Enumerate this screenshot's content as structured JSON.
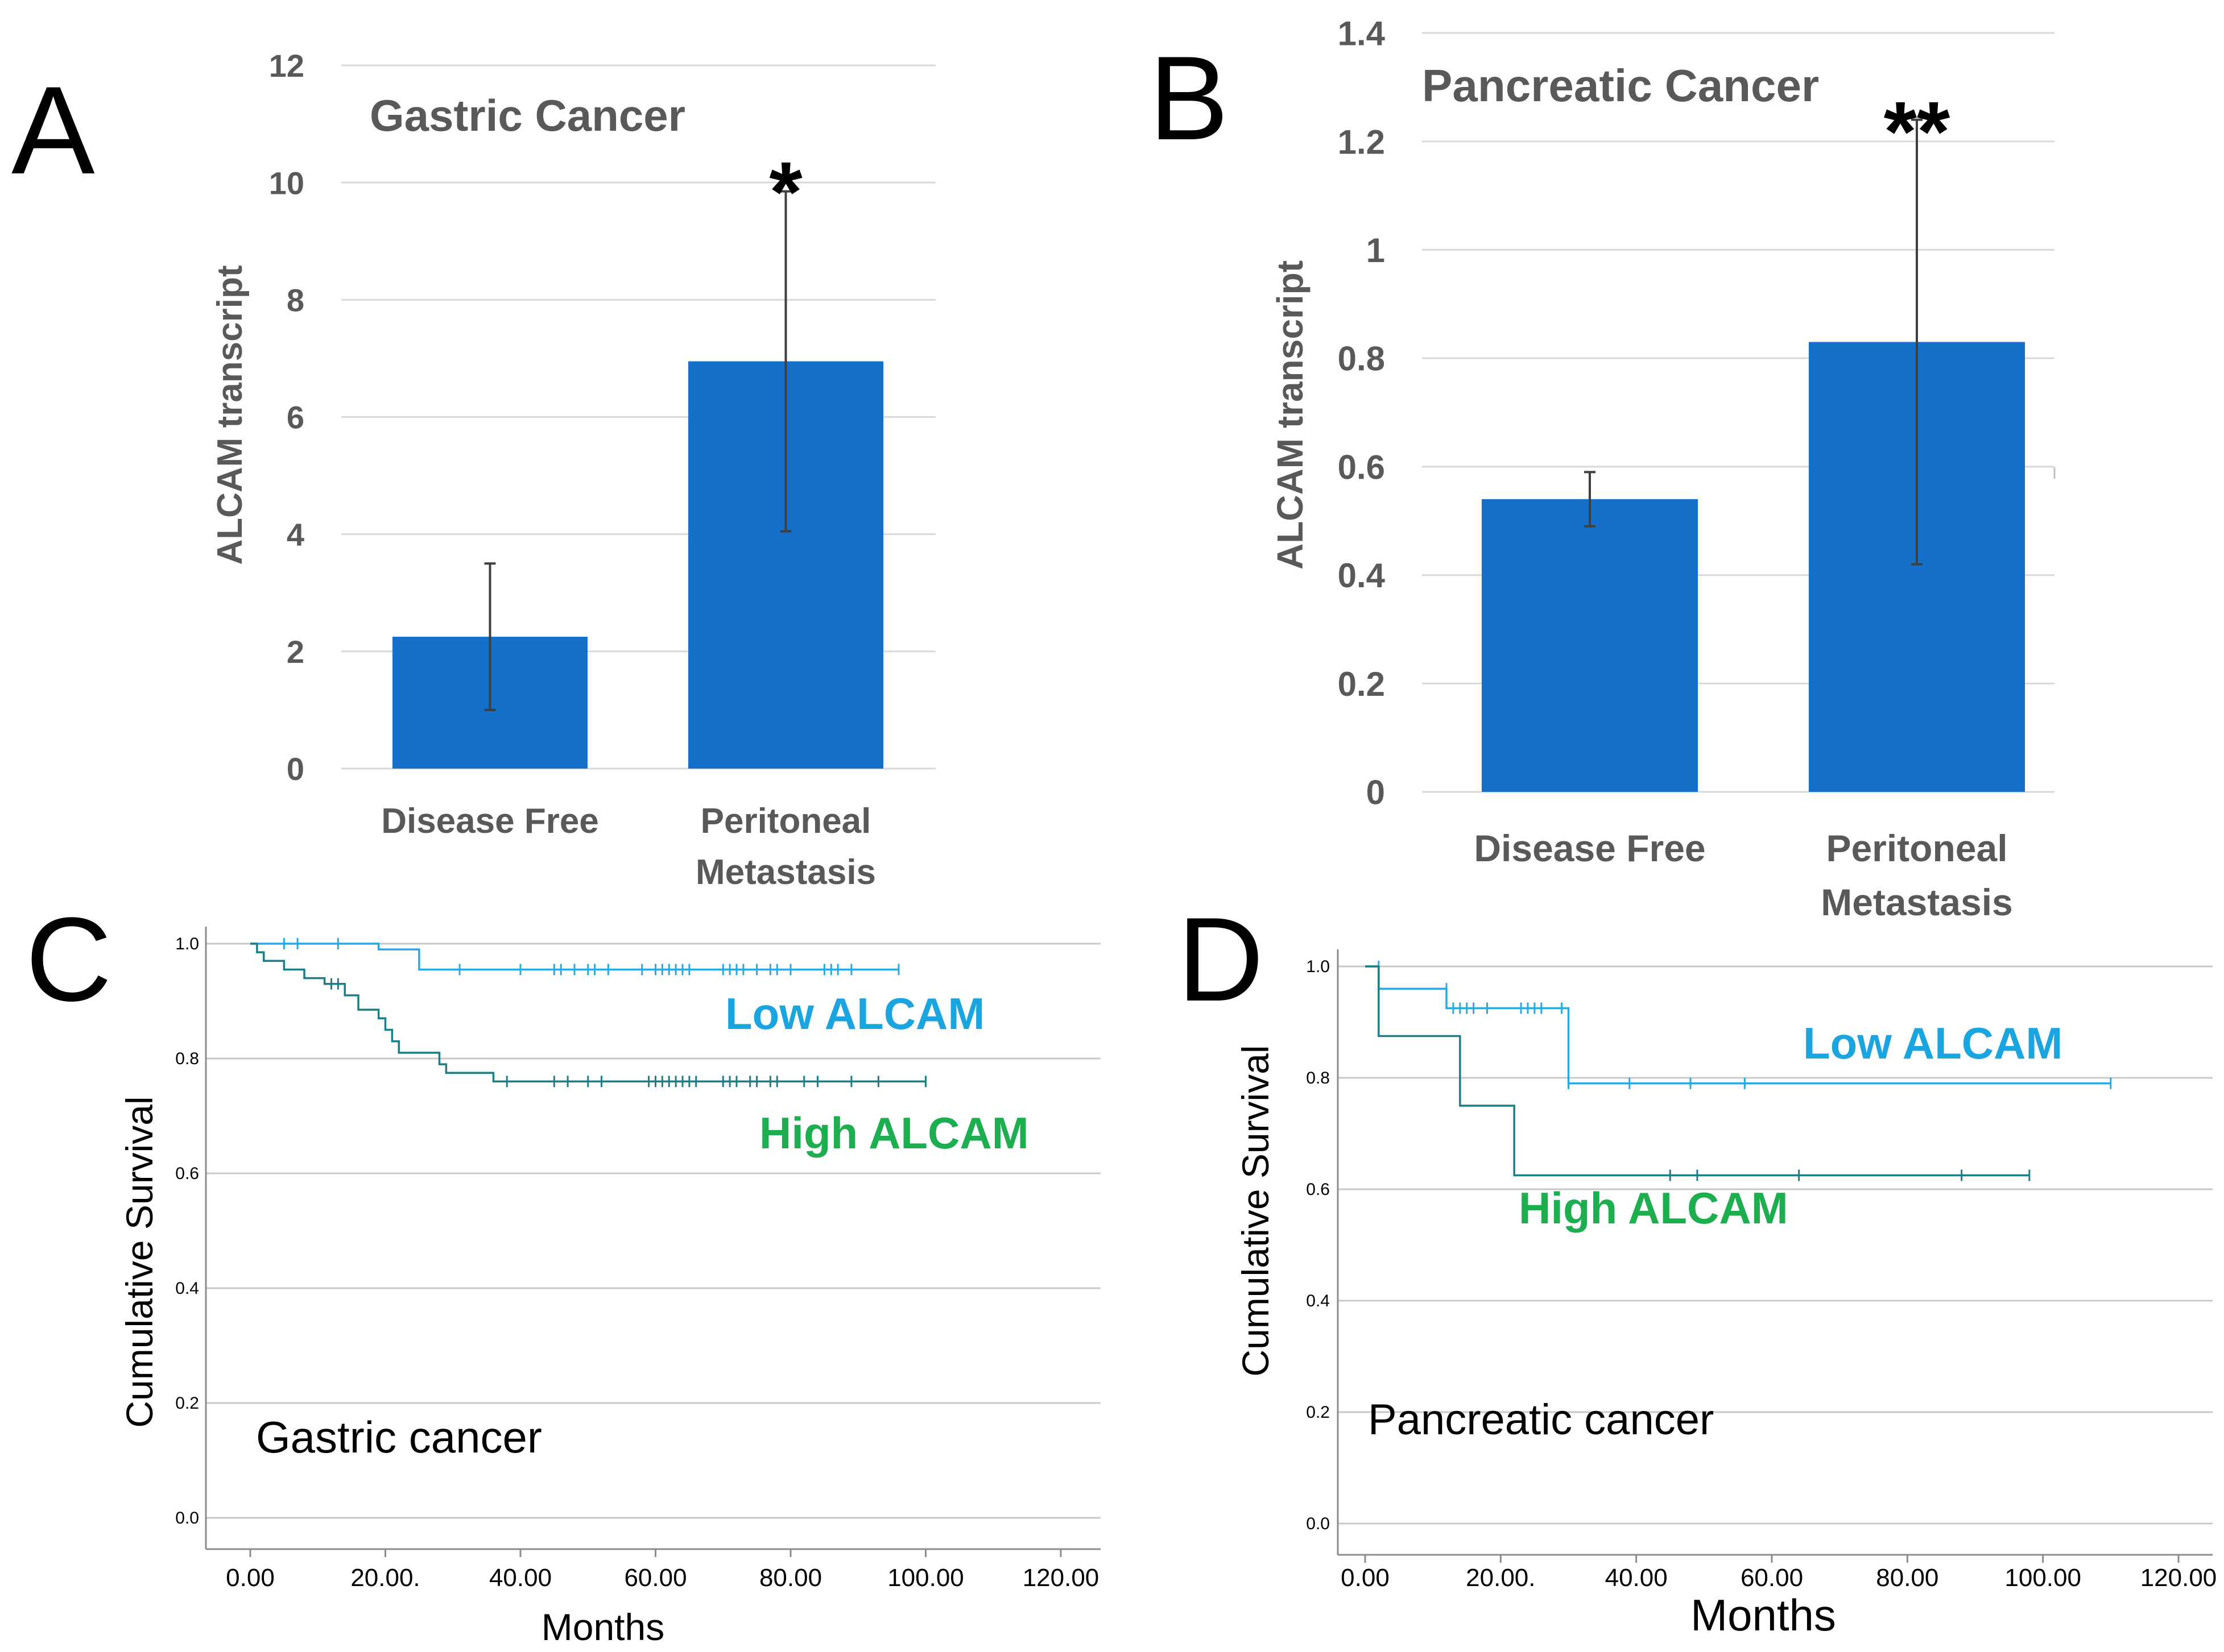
{
  "panels": [
    {
      "id": "A",
      "letter": "A"
    },
    {
      "id": "B",
      "letter": "B"
    },
    {
      "id": "C",
      "letter": "C"
    },
    {
      "id": "D",
      "letter": "D"
    }
  ],
  "chart_data": [
    {
      "panel": "A",
      "type": "bar",
      "title": "Gastric Cancer",
      "ylabel": "ALCAM transcript",
      "xlabel": "",
      "ylim": [
        0,
        12
      ],
      "yticks": [
        0,
        2,
        4,
        6,
        8,
        10,
        12
      ],
      "ytick_labels": [
        "0",
        "2",
        "4",
        "6",
        "8",
        "10",
        "12"
      ],
      "categories": [
        [
          "Disease Free"
        ],
        [
          "Peritoneal",
          "Metastasis"
        ]
      ],
      "values": [
        2.25,
        6.95
      ],
      "error_low": [
        1.0,
        4.05
      ],
      "error_high": [
        3.5,
        9.85
      ],
      "significance": [
        "",
        "*"
      ],
      "bar_color": "#1470C8"
    },
    {
      "panel": "B",
      "type": "bar",
      "title": "Pancreatic Cancer",
      "ylabel": "ALCAM transcript",
      "xlabel": "",
      "ylim": [
        0,
        1.4
      ],
      "yticks": [
        0,
        0.2,
        0.4,
        0.6,
        0.8,
        1,
        1.2,
        1.4
      ],
      "ytick_labels": [
        "0",
        "0.2",
        "0.4",
        "0.6",
        "0.8",
        "1",
        "1.2",
        "1.4"
      ],
      "categories": [
        [
          "Disease Free"
        ],
        [
          "Peritoneal",
          "Metastasis"
        ]
      ],
      "values": [
        0.54,
        0.83
      ],
      "error_low": [
        0.49,
        0.42
      ],
      "error_high": [
        0.59,
        1.24
      ],
      "significance": [
        "",
        "**"
      ],
      "bar_color": "#1470C8"
    },
    {
      "panel": "C",
      "type": "line",
      "subtype": "kaplan-meier",
      "title": "Gastric cancer",
      "xlabel": "Months",
      "ylabel": "Cumulative Survival",
      "xlim": [
        0,
        120
      ],
      "ylim": [
        0,
        1
      ],
      "xticks": [
        0,
        20,
        40,
        60,
        80,
        100,
        120
      ],
      "xtick_labels": [
        "0.00",
        "20.00.",
        "40.00",
        "60.00",
        "80.00",
        "100.00",
        "120.00"
      ],
      "yticks": [
        0,
        0.2,
        0.4,
        0.6,
        0.8,
        1.0
      ],
      "ytick_labels": [
        "0.0",
        "0.2",
        "0.4",
        "0.6",
        "0.8",
        "1.0"
      ],
      "series": [
        {
          "name": "Low ALCAM",
          "color": "#29A9E0",
          "steps": [
            [
              0,
              1.0
            ],
            [
              19,
              0.99
            ],
            [
              25,
              0.955
            ],
            [
              96,
              0.955
            ]
          ],
          "censored": [
            [
              5,
              1.0
            ],
            [
              7,
              1.0
            ],
            [
              13,
              1.0
            ],
            [
              31,
              0.955
            ],
            [
              40,
              0.955
            ],
            [
              45,
              0.955
            ],
            [
              46,
              0.955
            ],
            [
              48,
              0.955
            ],
            [
              50,
              0.955
            ],
            [
              51,
              0.955
            ],
            [
              53,
              0.955
            ],
            [
              58,
              0.955
            ],
            [
              60,
              0.955
            ],
            [
              61,
              0.955
            ],
            [
              62,
              0.955
            ],
            [
              63,
              0.955
            ],
            [
              64,
              0.955
            ],
            [
              65,
              0.955
            ],
            [
              70,
              0.955
            ],
            [
              71,
              0.955
            ],
            [
              72,
              0.955
            ],
            [
              73,
              0.955
            ],
            [
              75,
              0.955
            ],
            [
              77,
              0.955
            ],
            [
              78,
              0.955
            ],
            [
              80,
              0.955
            ],
            [
              85,
              0.955
            ],
            [
              86,
              0.955
            ],
            [
              87,
              0.955
            ],
            [
              89,
              0.955
            ],
            [
              96,
              0.955
            ]
          ]
        },
        {
          "name": "High ALCAM",
          "color": "#1A7F86",
          "steps": [
            [
              0,
              1.0
            ],
            [
              1,
              0.985
            ],
            [
              2,
              0.97
            ],
            [
              5,
              0.955
            ],
            [
              8,
              0.94
            ],
            [
              11,
              0.93
            ],
            [
              14,
              0.91
            ],
            [
              16,
              0.885
            ],
            [
              19,
              0.87
            ],
            [
              20,
              0.85
            ],
            [
              21,
              0.83
            ],
            [
              22,
              0.81
            ],
            [
              28,
              0.79
            ],
            [
              29,
              0.775
            ],
            [
              36,
              0.76
            ],
            [
              100,
              0.76
            ]
          ],
          "censored": [
            [
              12,
              0.93
            ],
            [
              13,
              0.93
            ],
            [
              38,
              0.76
            ],
            [
              45,
              0.76
            ],
            [
              47,
              0.76
            ],
            [
              50,
              0.76
            ],
            [
              52,
              0.76
            ],
            [
              59,
              0.76
            ],
            [
              60,
              0.76
            ],
            [
              61,
              0.76
            ],
            [
              62,
              0.76
            ],
            [
              63,
              0.76
            ],
            [
              64,
              0.76
            ],
            [
              65,
              0.76
            ],
            [
              66,
              0.76
            ],
            [
              70,
              0.76
            ],
            [
              71,
              0.76
            ],
            [
              72,
              0.76
            ],
            [
              74,
              0.76
            ],
            [
              75,
              0.76
            ],
            [
              77,
              0.76
            ],
            [
              78,
              0.76
            ],
            [
              82,
              0.76
            ],
            [
              84,
              0.76
            ],
            [
              89,
              0.76
            ],
            [
              93,
              0.76
            ],
            [
              100,
              0.76
            ]
          ]
        }
      ],
      "labels": [
        {
          "text": "Low ALCAM",
          "color": "#1AA4E0"
        },
        {
          "text": "High ALCAM",
          "color": "#1DAE4F"
        }
      ]
    },
    {
      "panel": "D",
      "type": "line",
      "subtype": "kaplan-meier",
      "title": "Pancreatic cancer",
      "xlabel": "Months",
      "ylabel": "Cumulative Survival",
      "xlim": [
        0,
        120
      ],
      "ylim": [
        0,
        1
      ],
      "xticks": [
        0,
        20,
        40,
        60,
        80,
        100,
        120
      ],
      "xtick_labels": [
        "0.00",
        "20.00.",
        "40.00",
        "60.00",
        "80.00",
        "100.00",
        "120.00"
      ],
      "yticks": [
        0,
        0.2,
        0.4,
        0.6,
        0.8,
        1.0
      ],
      "ytick_labels": [
        "0.0",
        "0.2",
        "0.4",
        "0.6",
        "0.8",
        "1.0"
      ],
      "series": [
        {
          "name": "Low ALCAM",
          "color": "#29A9E0",
          "steps": [
            [
              0,
              1.0
            ],
            [
              2,
              0.96
            ],
            [
              12,
              0.925
            ],
            [
              30,
              0.79
            ],
            [
              110,
              0.79
            ]
          ],
          "censored": [
            [
              2,
              1.0
            ],
            [
              12,
              0.96
            ],
            [
              13,
              0.925
            ],
            [
              14,
              0.925
            ],
            [
              15,
              0.925
            ],
            [
              16,
              0.925
            ],
            [
              18,
              0.925
            ],
            [
              23,
              0.925
            ],
            [
              24,
              0.925
            ],
            [
              25,
              0.925
            ],
            [
              26,
              0.925
            ],
            [
              29,
              0.925
            ],
            [
              30,
              0.79
            ],
            [
              39,
              0.79
            ],
            [
              48,
              0.79
            ],
            [
              56,
              0.79
            ],
            [
              110,
              0.79
            ]
          ]
        },
        {
          "name": "High ALCAM",
          "color": "#1A7F86",
          "steps": [
            [
              0,
              1.0
            ],
            [
              2,
              0.875
            ],
            [
              14,
              0.75
            ],
            [
              22,
              0.625
            ],
            [
              98,
              0.625
            ]
          ],
          "censored": [
            [
              45,
              0.625
            ],
            [
              49,
              0.625
            ],
            [
              64,
              0.625
            ],
            [
              88,
              0.625
            ],
            [
              98,
              0.625
            ]
          ]
        }
      ],
      "labels": [
        {
          "text": "Low ALCAM",
          "color": "#1AA4E0"
        },
        {
          "text": "High ALCAM",
          "color": "#1DAE4F"
        }
      ]
    }
  ]
}
